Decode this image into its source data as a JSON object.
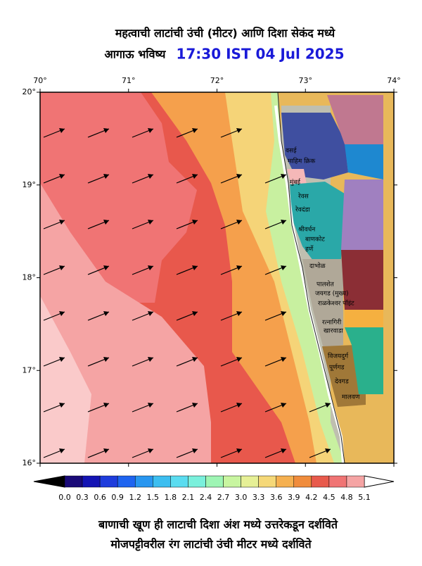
{
  "header": {
    "title": "महत्वाची लाटांची उंची (मीटर) आणि दिशा सेकंद मध्ये",
    "subtitle": "आगाऊ भविष्य",
    "time": "17:30 IST 04 Jul 2025"
  },
  "axes": {
    "lon_labels": [
      "70°",
      "71°",
      "72°",
      "73°",
      "74°"
    ],
    "lat_labels": [
      "20°",
      "19°",
      "18°",
      "17°",
      "16°"
    ]
  },
  "places": [
    "वसई",
    "माहिम क्रिक",
    "मुंबई",
    "रेवस",
    "रेवदंडा",
    "श्रीवर्धन",
    "बाणकोट",
    "हर्णे",
    "दाभोळ",
    "पालशेत",
    "जयगड (मुख्य)",
    "राळकेश्वर पॉइंट",
    "रत्नागिरी",
    "खारवाडा",
    "विजयदुर्ग",
    "पूर्णगड",
    "देवगड",
    "मालवण"
  ],
  "colorbar": {
    "labels": [
      "0.0",
      "0.3",
      "0.6",
      "0.9",
      "1.2",
      "1.5",
      "1.8",
      "2.1",
      "2.4",
      "2.7",
      "3.0",
      "3.3",
      "3.6",
      "3.9",
      "4.2",
      "4.5",
      "4.8",
      "5.1"
    ],
    "colors": [
      "#1a0a78",
      "#1414b4",
      "#1e3cdc",
      "#1e64f0",
      "#2896f0",
      "#3cbef0",
      "#5adcf0",
      "#7af0dc",
      "#9ef5b4",
      "#c8f5a0",
      "#e6f096",
      "#f5d878",
      "#f5b050",
      "#f08c3c",
      "#e85a4c",
      "#f07474",
      "#f5a4a4"
    ]
  },
  "footer": {
    "line1": "बाणाची खूण ही लाटाची दिशा अंश मध्ये उत्तरेकडून दर्शविते",
    "line2": "मोजपट्टीवरील रंग लाटांची उंची मीटर मध्ये दर्शविते"
  }
}
